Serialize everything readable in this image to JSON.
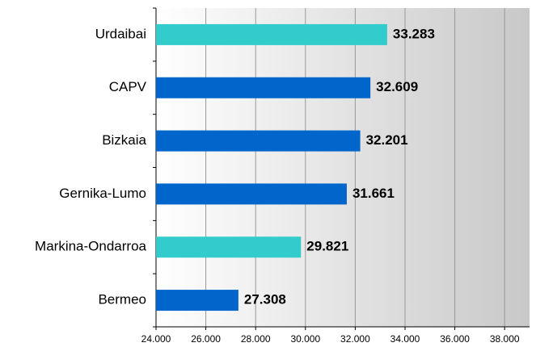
{
  "chart_data": {
    "type": "bar",
    "orientation": "horizontal",
    "categories": [
      "Urdaibai",
      "CAPV",
      "Bizkaia",
      "Gernika-Lumo",
      "Markina-Ondarroa",
      "Bermeo"
    ],
    "values": [
      33283,
      32609,
      32201,
      31661,
      29821,
      27308
    ],
    "value_labels": [
      "33.283",
      "32.609",
      "32.201",
      "31.661",
      "29.821",
      "27.308"
    ],
    "colors": [
      "#33cccc",
      "#0066cc",
      "#0066cc",
      "#0066cc",
      "#33cccc",
      "#0066cc"
    ],
    "xlim": [
      24000,
      39000
    ],
    "xticks": [
      {
        "value": 24000,
        "label": "24.000"
      },
      {
        "value": 26000,
        "label": "26.000"
      },
      {
        "value": 28000,
        "label": "28.000"
      },
      {
        "value": 30000,
        "label": "30.000"
      },
      {
        "value": 32000,
        "label": "32.000"
      },
      {
        "value": 34000,
        "label": "34.000"
      },
      {
        "value": 36000,
        "label": "36.000"
      },
      {
        "value": 38000,
        "label": "38.000"
      }
    ],
    "grid": true
  }
}
